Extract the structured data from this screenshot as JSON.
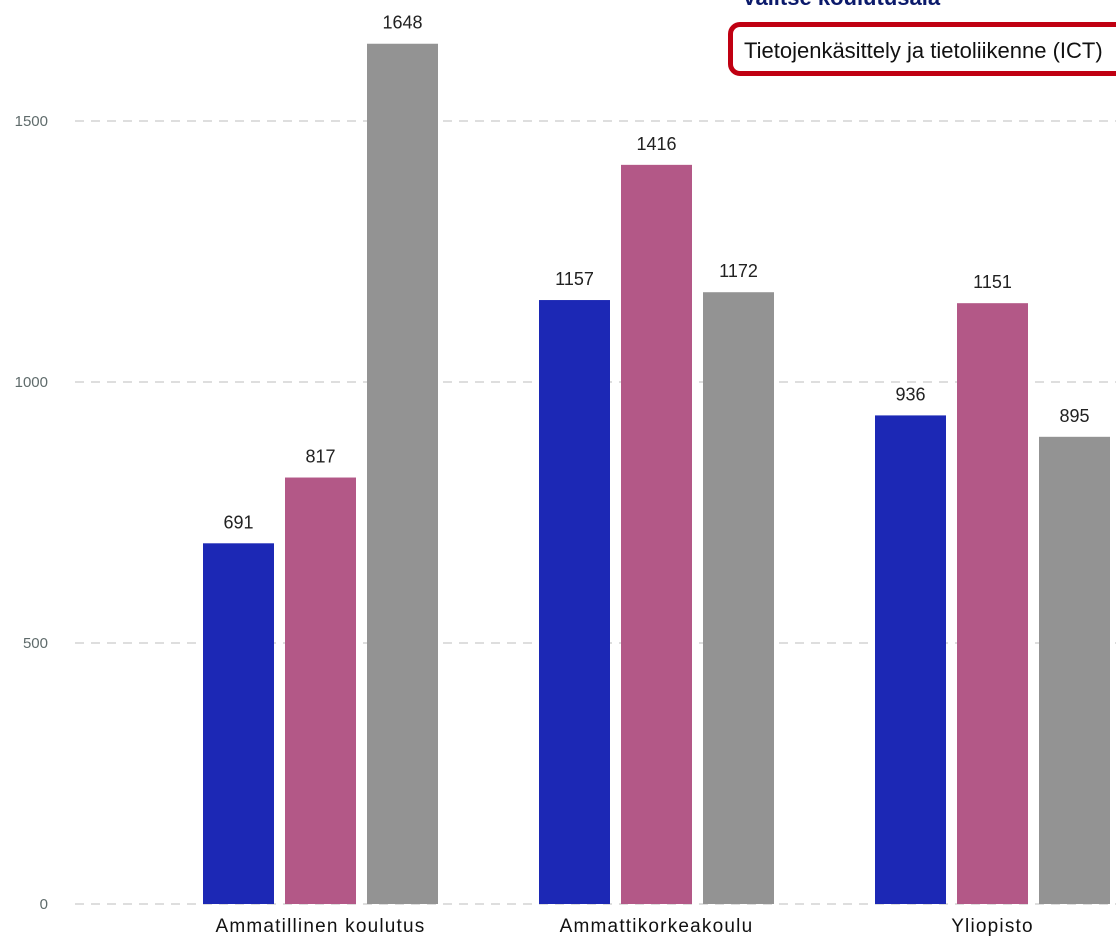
{
  "filter": {
    "label": "Valitse koulutusala",
    "selected": "Tietojenkäsittely ja tietoliikenne (ICT)"
  },
  "chart_data": {
    "type": "bar",
    "title": "",
    "xlabel": "",
    "ylabel": "",
    "ylim": [
      0,
      1500
    ],
    "yticks": [
      0,
      500,
      1000,
      1500
    ],
    "grid": true,
    "legend": "none",
    "categories": [
      "Ammatillinen koulutus",
      "Ammattikorkeakoulu",
      "Yliopisto"
    ],
    "series": [
      {
        "color": "#1c28b5",
        "values": [
          691,
          1157,
          936
        ]
      },
      {
        "color": "#b35887",
        "values": [
          817,
          1416,
          1151
        ]
      },
      {
        "color": "#939393",
        "values": [
          1648,
          1172,
          895
        ]
      }
    ]
  }
}
